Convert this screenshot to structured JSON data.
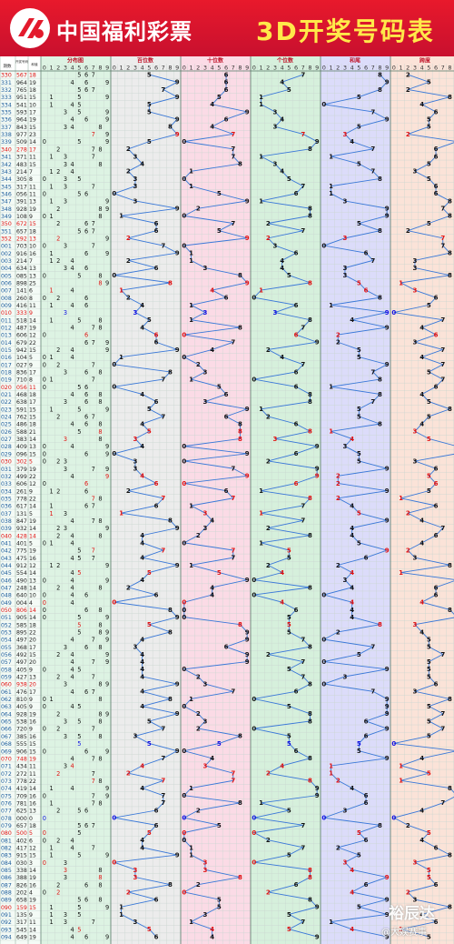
{
  "header": {
    "brand": "中国福利彩票",
    "title": "3D开奖号码表"
  },
  "colors": {
    "header_red": "#e31a2c",
    "title_yellow": "#ffe94a",
    "hit_red": "#e01010",
    "hit_blue": "#1010e0",
    "line_blue": "#3a78d8",
    "bg_dist": "#ddf3e3",
    "bg_bai": "#ececec",
    "bg_shi": "#fbdbe6",
    "bg_ge": "#d6f0dc",
    "bg_he": "#dcdcfa",
    "bg_kua": "#fbe3d8"
  },
  "watermark": {
    "brand": "裕辰达",
    "author": "@大娱赛事"
  },
  "chart_data": {
    "type": "table",
    "columns": {
      "issue": "期数",
      "number": "开奖号码",
      "sum": "和值",
      "distribution": "分布图",
      "hundreds": "百位数",
      "tens": "十位数",
      "units": "个位数",
      "sum_tail": "和尾",
      "span": "跨度"
    },
    "digit_header": [
      "0",
      "1",
      "2",
      "3",
      "4",
      "5",
      "6",
      "7",
      "8",
      "9"
    ],
    "rows": [
      [
        "330",
        "567",
        18
      ],
      [
        "331",
        "964",
        19
      ],
      [
        "332",
        "765",
        18
      ],
      [
        "333",
        "951",
        15
      ],
      [
        "334",
        "541",
        10
      ],
      [
        "335",
        "593",
        17
      ],
      [
        "336",
        "964",
        19
      ],
      [
        "337",
        "843",
        15
      ],
      [
        "338",
        "977",
        23
      ],
      [
        "339",
        "509",
        14
      ],
      [
        "340",
        "278",
        17
      ],
      [
        "341",
        "371",
        11
      ],
      [
        "342",
        "483",
        15
      ],
      [
        "343",
        "214",
        7
      ],
      [
        "344",
        "305",
        8
      ],
      [
        "345",
        "317",
        11
      ],
      [
        "346",
        "056",
        11
      ],
      [
        "347",
        "391",
        13
      ],
      [
        "348",
        "928",
        19
      ],
      [
        "349",
        "108",
        9
      ],
      [
        "350",
        "672",
        15
      ],
      [
        "351",
        "657",
        18
      ],
      [
        "352",
        "292",
        13
      ],
      [
        "001",
        "703",
        10
      ],
      [
        "002",
        "916",
        16
      ],
      [
        "003",
        "214",
        7
      ],
      [
        "004",
        "634",
        13
      ],
      [
        "005",
        "085",
        13
      ],
      [
        "006",
        "898",
        25
      ],
      [
        "007",
        "141",
        6
      ],
      [
        "008",
        "260",
        8
      ],
      [
        "009",
        "416",
        11
      ],
      [
        "010",
        "333",
        9
      ],
      [
        "011",
        "518",
        14
      ],
      [
        "012",
        "487",
        19
      ],
      [
        "013",
        "606",
        12
      ],
      [
        "014",
        "679",
        22
      ],
      [
        "015",
        "942",
        15
      ],
      [
        "016",
        "104",
        5
      ],
      [
        "017",
        "027",
        9
      ],
      [
        "018",
        "836",
        17
      ],
      [
        "019",
        "710",
        8
      ],
      [
        "020",
        "056",
        11
      ],
      [
        "021",
        "468",
        18
      ],
      [
        "022",
        "638",
        17
      ],
      [
        "023",
        "591",
        15
      ],
      [
        "024",
        "762",
        15
      ],
      [
        "025",
        "486",
        18
      ],
      [
        "026",
        "588",
        21
      ],
      [
        "027",
        "383",
        14
      ],
      [
        "028",
        "409",
        13
      ],
      [
        "029",
        "096",
        15
      ],
      [
        "030",
        "302",
        5
      ],
      [
        "031",
        "379",
        19
      ],
      [
        "032",
        "499",
        22
      ],
      [
        "033",
        "606",
        12
      ],
      [
        "034",
        "261",
        9
      ],
      [
        "035",
        "778",
        22
      ],
      [
        "036",
        "617",
        14
      ],
      [
        "037",
        "131",
        5
      ],
      [
        "038",
        "847",
        19
      ],
      [
        "039",
        "932",
        14
      ],
      [
        "040",
        "428",
        14
      ],
      [
        "041",
        "401",
        5
      ],
      [
        "042",
        "775",
        19
      ],
      [
        "043",
        "475",
        16
      ],
      [
        "044",
        "912",
        12
      ],
      [
        "045",
        "554",
        14
      ],
      [
        "046",
        "490",
        13
      ],
      [
        "047",
        "248",
        14
      ],
      [
        "048",
        "640",
        10
      ],
      [
        "049",
        "004",
        4
      ],
      [
        "050",
        "806",
        14
      ],
      [
        "051",
        "905",
        14
      ],
      [
        "052",
        "585",
        18
      ],
      [
        "053",
        "895",
        22
      ],
      [
        "054",
        "497",
        20
      ],
      [
        "055",
        "368",
        17
      ],
      [
        "056",
        "492",
        15
      ],
      [
        "057",
        "497",
        20
      ],
      [
        "058",
        "405",
        9
      ],
      [
        "059",
        "427",
        13
      ],
      [
        "060",
        "938",
        20
      ],
      [
        "061",
        "476",
        17
      ],
      [
        "062",
        "810",
        9
      ],
      [
        "063",
        "405",
        9
      ],
      [
        "064",
        "928",
        19
      ],
      [
        "065",
        "538",
        16
      ],
      [
        "066",
        "720",
        9
      ],
      [
        "067",
        "385",
        16
      ],
      [
        "068",
        "555",
        15
      ],
      [
        "069",
        "906",
        15
      ],
      [
        "070",
        "748",
        19
      ],
      [
        "071",
        "434",
        11
      ],
      [
        "072",
        "272",
        11
      ],
      [
        "073",
        "778",
        22
      ],
      [
        "074",
        "419",
        14
      ],
      [
        "075",
        "709",
        16
      ],
      [
        "076",
        "781",
        16
      ],
      [
        "077",
        "625",
        13
      ],
      [
        "078",
        "000",
        0
      ],
      [
        "079",
        "657",
        18
      ],
      [
        "080",
        "500",
        5
      ],
      [
        "081",
        "402",
        6
      ],
      [
        "082",
        "417",
        12
      ],
      [
        "083",
        "915",
        15
      ],
      [
        "084",
        "030",
        3
      ],
      [
        "085",
        "338",
        14
      ],
      [
        "086",
        "388",
        19
      ],
      [
        "087",
        "826",
        16
      ],
      [
        "088",
        "202",
        4
      ],
      [
        "089",
        "658",
        19
      ],
      [
        "090",
        "159",
        15
      ],
      [
        "091",
        "135",
        9
      ],
      [
        "092",
        "317",
        11
      ],
      [
        "093",
        "545",
        14
      ],
      [
        "094",
        "649",
        19
      ]
    ]
  }
}
